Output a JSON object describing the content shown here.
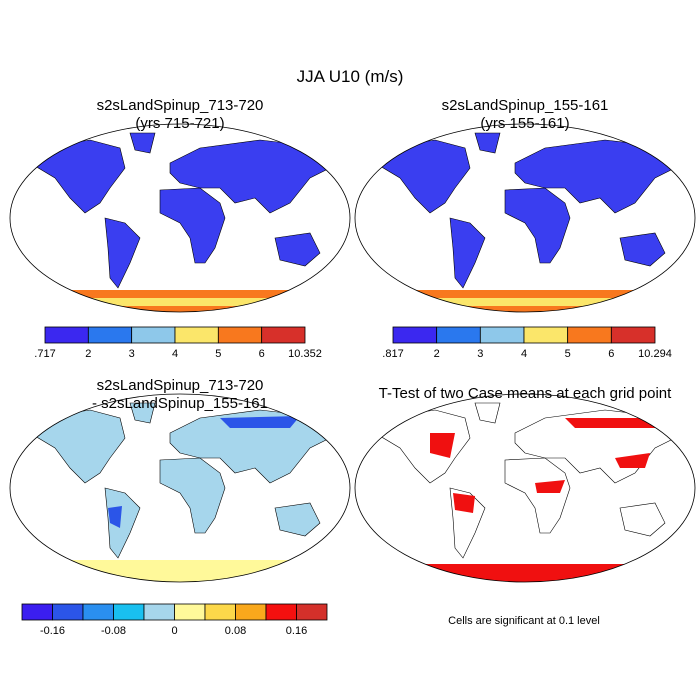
{
  "title": "JJA U10 (m/s)",
  "panels": [
    {
      "title": [
        "s2sLandSpinup_713-720",
        "(yrs 715-721)"
      ],
      "colorbar": {
        "labels": [
          ".717",
          "2",
          "3",
          "4",
          "5",
          "6",
          "10.352"
        ],
        "colors": [
          "#3b28f0",
          "#2a78ee",
          "#8ec8ea",
          "#fbe66a",
          "#f8781e",
          "#d7302a"
        ]
      }
    },
    {
      "title": [
        "s2sLandSpinup_155-161",
        "(yrs 155-161)"
      ],
      "colorbar": {
        "labels": [
          ".817",
          "2",
          "3",
          "4",
          "5",
          "6",
          "10.294"
        ],
        "colors": [
          "#3b28f0",
          "#2a78ee",
          "#8ec8ea",
          "#fbe66a",
          "#f8781e",
          "#d7302a"
        ]
      }
    },
    {
      "title": [
        "s2sLandSpinup_713-720",
        "- s2sLandSpinup_155-161"
      ],
      "colorbar": {
        "labels": [
          "-0.16",
          "-0.08",
          "0",
          "0.08",
          "0.16"
        ],
        "colors": [
          "#3b1ef0",
          "#2b55e8",
          "#2a8ff0",
          "#19c0f0",
          "#a6d6ec",
          "#fff99a",
          "#fcd84a",
          "#f9a81c",
          "#f5100f",
          "#d4302a"
        ]
      }
    },
    {
      "title": [
        "T-Test of two Case means at each grid point"
      ]
    }
  ],
  "note": "Cells are significant at 0.1 level"
}
